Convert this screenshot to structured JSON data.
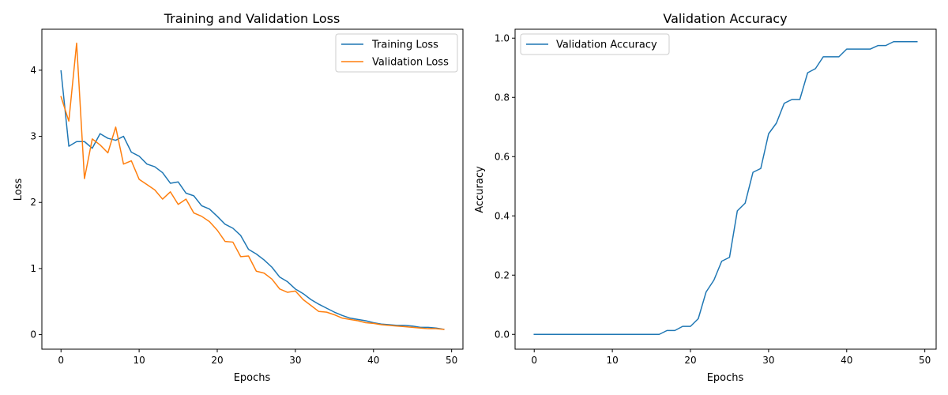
{
  "colors": {
    "training": "#1f77b4",
    "validation": "#ff7f0e",
    "accuracy": "#1f77b4"
  },
  "chart_data": [
    {
      "type": "line",
      "title": "Training and Validation Loss",
      "xlabel": "Epochs",
      "ylabel": "Loss",
      "xlim": [
        -2.45,
        51.45
      ],
      "ylim": [
        -0.22,
        4.62
      ],
      "xticks": [
        0,
        10,
        20,
        30,
        40,
        50
      ],
      "yticks": [
        0,
        1,
        2,
        3,
        4
      ],
      "grid": false,
      "legend": "upper right",
      "x": [
        0,
        1,
        2,
        3,
        4,
        5,
        6,
        7,
        8,
        9,
        10,
        11,
        12,
        13,
        14,
        15,
        16,
        17,
        18,
        19,
        20,
        21,
        22,
        23,
        24,
        25,
        26,
        27,
        28,
        29,
        30,
        31,
        32,
        33,
        34,
        35,
        36,
        37,
        38,
        39,
        40,
        41,
        42,
        43,
        44,
        45,
        46,
        47,
        48,
        49
      ],
      "series": [
        {
          "name": "Training Loss",
          "color_key": "training",
          "values": [
            3.99,
            2.85,
            2.92,
            2.92,
            2.82,
            3.04,
            2.97,
            2.94,
            3.0,
            2.76,
            2.7,
            2.58,
            2.54,
            2.45,
            2.29,
            2.31,
            2.14,
            2.1,
            1.95,
            1.9,
            1.79,
            1.67,
            1.61,
            1.5,
            1.29,
            1.22,
            1.13,
            1.02,
            0.87,
            0.8,
            0.69,
            0.62,
            0.53,
            0.46,
            0.4,
            0.34,
            0.29,
            0.25,
            0.23,
            0.21,
            0.18,
            0.16,
            0.15,
            0.14,
            0.14,
            0.13,
            0.11,
            0.11,
            0.1,
            0.08
          ]
        },
        {
          "name": "Validation Loss",
          "color_key": "validation",
          "values": [
            3.6,
            3.23,
            4.41,
            2.36,
            2.96,
            2.87,
            2.75,
            3.14,
            2.58,
            2.63,
            2.35,
            2.27,
            2.19,
            2.05,
            2.16,
            1.97,
            2.05,
            1.84,
            1.79,
            1.71,
            1.58,
            1.41,
            1.4,
            1.18,
            1.19,
            0.96,
            0.93,
            0.84,
            0.69,
            0.64,
            0.66,
            0.53,
            0.44,
            0.35,
            0.34,
            0.3,
            0.25,
            0.23,
            0.21,
            0.18,
            0.17,
            0.15,
            0.14,
            0.13,
            0.12,
            0.11,
            0.1,
            0.09,
            0.09,
            0.08
          ]
        }
      ]
    },
    {
      "type": "line",
      "title": "Validation Accuracy",
      "xlabel": "Epochs",
      "ylabel": "Accuracy",
      "xlim": [
        -2.45,
        51.45
      ],
      "ylim": [
        -0.05,
        1.03
      ],
      "xticks": [
        0,
        10,
        20,
        30,
        40,
        50
      ],
      "yticks": [
        0.0,
        0.2,
        0.4,
        0.6,
        0.8,
        1.0
      ],
      "ytick_labels": [
        "0.0",
        "0.2",
        "0.4",
        "0.6",
        "0.8",
        "1.0"
      ],
      "grid": false,
      "legend": "upper left",
      "x": [
        0,
        1,
        2,
        3,
        4,
        5,
        6,
        7,
        8,
        9,
        10,
        11,
        12,
        13,
        14,
        15,
        16,
        17,
        18,
        19,
        20,
        21,
        22,
        23,
        24,
        25,
        26,
        27,
        28,
        29,
        30,
        31,
        32,
        33,
        34,
        35,
        36,
        37,
        38,
        39,
        40,
        41,
        42,
        43,
        44,
        45,
        46,
        47,
        48,
        49
      ],
      "series": [
        {
          "name": "Validation Accuracy",
          "color_key": "accuracy",
          "values": [
            0,
            0,
            0,
            0,
            0,
            0,
            0,
            0,
            0,
            0,
            0,
            0,
            0,
            0,
            0,
            0,
            0,
            0.013,
            0.013,
            0.027,
            0.027,
            0.053,
            0.143,
            0.183,
            0.247,
            0.26,
            0.417,
            0.443,
            0.547,
            0.56,
            0.677,
            0.713,
            0.78,
            0.793,
            0.793,
            0.883,
            0.897,
            0.937,
            0.937,
            0.937,
            0.963,
            0.963,
            0.963,
            0.963,
            0.975,
            0.975,
            0.988,
            0.988,
            0.988,
            0.988
          ]
        }
      ]
    }
  ]
}
